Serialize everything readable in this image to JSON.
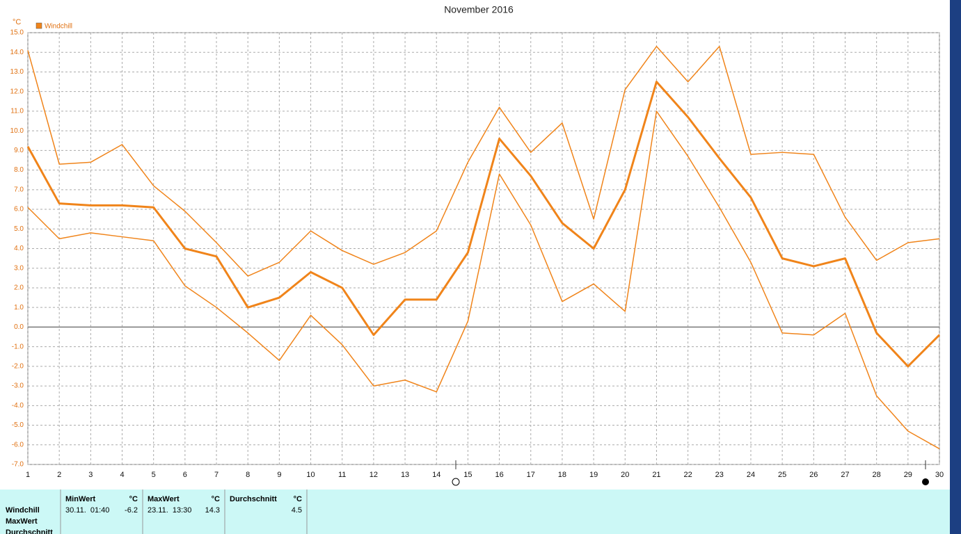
{
  "chart_data": {
    "type": "line",
    "title": "November 2016",
    "y_label": "°C",
    "x": [
      1,
      2,
      3,
      4,
      5,
      6,
      7,
      8,
      9,
      10,
      11,
      12,
      13,
      14,
      15,
      16,
      17,
      18,
      19,
      20,
      21,
      22,
      23,
      24,
      25,
      26,
      27,
      28,
      29,
      30
    ],
    "xlim": [
      1,
      30
    ],
    "xticks": [
      1,
      2,
      3,
      4,
      5,
      6,
      7,
      8,
      9,
      10,
      11,
      12,
      13,
      14,
      15,
      16,
      17,
      18,
      19,
      20,
      21,
      22,
      23,
      24,
      25,
      26,
      27,
      28,
      29,
      30
    ],
    "ylim": [
      -7,
      15
    ],
    "yticks": [
      {
        "value": 15,
        "label": "15.0"
      },
      {
        "value": 14,
        "label": "14.0"
      },
      {
        "value": 13,
        "label": "13.0"
      },
      {
        "value": 12,
        "label": "12.0"
      },
      {
        "value": 11,
        "label": "11.0"
      },
      {
        "value": 10,
        "label": "10.0"
      },
      {
        "value": 9,
        "label": "9.0"
      },
      {
        "value": 8,
        "label": "8.0"
      },
      {
        "value": 7,
        "label": "7.0"
      },
      {
        "value": 6,
        "label": "6.0"
      },
      {
        "value": 5,
        "label": "5.0"
      },
      {
        "value": 4,
        "label": "4.0"
      },
      {
        "value": 3,
        "label": "3.0"
      },
      {
        "value": 2,
        "label": "2.0"
      },
      {
        "value": 1,
        "label": "1.0"
      },
      {
        "value": 0,
        "label": "0.0"
      },
      {
        "value": -1,
        "label": "-1.0"
      },
      {
        "value": -2,
        "label": "-2.0"
      },
      {
        "value": -3,
        "label": "-3.0"
      },
      {
        "value": -4,
        "label": "-4.0"
      },
      {
        "value": -5,
        "label": "-5.0"
      },
      {
        "value": -6,
        "label": "-6.0"
      },
      {
        "value": -7,
        "label": "-7.0"
      }
    ],
    "grid": true,
    "legend": "top-left",
    "series": [
      {
        "name": "Windchill",
        "color": "#f0841a",
        "width": 3,
        "values": [
          9.2,
          6.3,
          6.2,
          6.2,
          6.1,
          4.0,
          3.6,
          1.0,
          1.5,
          2.8,
          2.0,
          -0.4,
          1.4,
          1.4,
          3.8,
          9.6,
          7.7,
          5.3,
          4.0,
          7.0,
          12.5,
          10.7,
          8.6,
          6.6,
          3.5,
          3.1,
          3.5,
          -0.3,
          -2.0,
          -0.4
        ]
      },
      {
        "color": "#f0841a",
        "width": 1.5,
        "values": [
          14.1,
          8.3,
          8.4,
          9.3,
          7.2,
          5.9,
          4.3,
          2.6,
          3.3,
          4.9,
          3.9,
          3.2,
          3.8,
          4.9,
          8.4,
          11.2,
          8.9,
          10.4,
          5.5,
          12.1,
          14.3,
          12.5,
          14.3,
          8.8,
          8.9,
          8.8,
          5.6,
          3.4,
          4.3,
          4.5
        ]
      },
      {
        "color": "#f0841a",
        "width": 1.5,
        "values": [
          6.1,
          4.5,
          4.8,
          4.6,
          4.4,
          2.1,
          1.0,
          -0.3,
          -1.7,
          0.6,
          -0.9,
          -3.0,
          -2.7,
          -3.3,
          0.3,
          7.8,
          5.2,
          1.3,
          2.2,
          0.8,
          11.0,
          8.7,
          6.1,
          3.3,
          -0.3,
          -0.4,
          0.7,
          -3.5,
          -5.3,
          -6.2
        ]
      }
    ]
  },
  "summary_table": {
    "row_labels": [
      "Windchill",
      "MaxWert",
      "Durchschnitt"
    ],
    "columns": [
      {
        "header": "MinWert",
        "unit": "°C",
        "time": "30.11.  01:40",
        "value": -6.2
      },
      {
        "header": "MaxWert",
        "unit": "°C",
        "time": "23.11.  13:30",
        "value": 14.3
      },
      {
        "header": "Durchschnitt",
        "unit": "°C",
        "value": 4.5
      }
    ]
  }
}
